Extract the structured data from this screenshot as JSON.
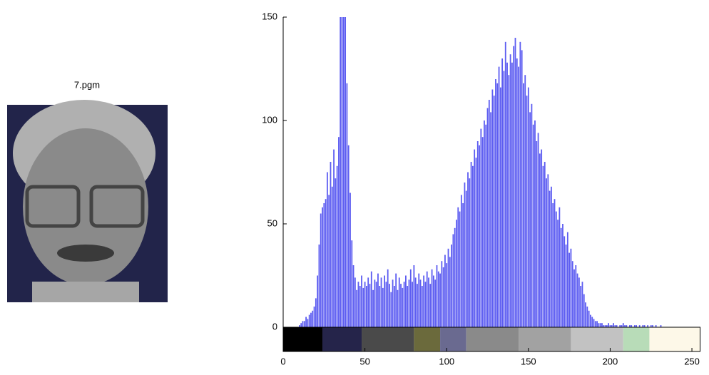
{
  "chart_data": {
    "type": "histogram",
    "image_title": "7.pgm",
    "color": "#3333ee",
    "x": [
      0,
      1,
      2,
      3,
      4,
      5,
      6,
      7,
      8,
      9,
      10,
      11,
      12,
      13,
      14,
      15,
      16,
      17,
      18,
      19,
      20,
      21,
      22,
      23,
      24,
      25,
      26,
      27,
      28,
      29,
      30,
      31,
      32,
      33,
      34,
      35,
      36,
      37,
      38,
      39,
      40,
      41,
      42,
      43,
      44,
      45,
      46,
      47,
      48,
      49,
      50,
      51,
      52,
      53,
      54,
      55,
      56,
      57,
      58,
      59,
      60,
      61,
      62,
      63,
      64,
      65,
      66,
      67,
      68,
      69,
      70,
      71,
      72,
      73,
      74,
      75,
      76,
      77,
      78,
      79,
      80,
      81,
      82,
      83,
      84,
      85,
      86,
      87,
      88,
      89,
      90,
      91,
      92,
      93,
      94,
      95,
      96,
      97,
      98,
      99,
      100,
      101,
      102,
      103,
      104,
      105,
      106,
      107,
      108,
      109,
      110,
      111,
      112,
      113,
      114,
      115,
      116,
      117,
      118,
      119,
      120,
      121,
      122,
      123,
      124,
      125,
      126,
      127,
      128,
      129,
      130,
      131,
      132,
      133,
      134,
      135,
      136,
      137,
      138,
      139,
      140,
      141,
      142,
      143,
      144,
      145,
      146,
      147,
      148,
      149,
      150,
      151,
      152,
      153,
      154,
      155,
      156,
      157,
      158,
      159,
      160,
      161,
      162,
      163,
      164,
      165,
      166,
      167,
      168,
      169,
      170,
      171,
      172,
      173,
      174,
      175,
      176,
      177,
      178,
      179,
      180,
      181,
      182,
      183,
      184,
      185,
      186,
      187,
      188,
      189,
      190,
      191,
      192,
      193,
      194,
      195,
      196,
      197,
      198,
      199,
      200,
      201,
      202,
      203,
      204,
      205,
      206,
      207,
      208,
      209,
      210,
      211,
      212,
      213,
      214,
      215,
      216,
      217,
      218,
      219,
      220,
      221,
      222,
      223,
      224,
      225,
      226,
      227,
      228,
      229,
      230,
      231,
      232,
      233,
      234,
      235,
      236,
      237,
      238,
      239,
      240,
      241,
      242,
      243,
      244,
      245,
      246,
      247,
      248,
      249,
      250,
      251,
      252,
      253,
      254,
      255
    ],
    "values": [
      0,
      0,
      0,
      0,
      0,
      0,
      0,
      0,
      0,
      0,
      1,
      2,
      3,
      3,
      5,
      4,
      6,
      7,
      8,
      10,
      14,
      25,
      40,
      55,
      58,
      60,
      62,
      75,
      64,
      80,
      68,
      86,
      72,
      78,
      92,
      150,
      150,
      150,
      150,
      118,
      88,
      65,
      42,
      30,
      24,
      18,
      22,
      20,
      25,
      19,
      22,
      20,
      24,
      21,
      27,
      18,
      23,
      22,
      26,
      20,
      24,
      19,
      25,
      22,
      28,
      21,
      17,
      23,
      20,
      26,
      18,
      24,
      21,
      19,
      22,
      25,
      20,
      23,
      28,
      22,
      30,
      24,
      21,
      26,
      23,
      20,
      25,
      22,
      27,
      24,
      21,
      28,
      25,
      23,
      30,
      27,
      26,
      32,
      29,
      35,
      31,
      38,
      34,
      40,
      45,
      48,
      52,
      58,
      56,
      64,
      60,
      70,
      66,
      75,
      72,
      80,
      78,
      86,
      82,
      90,
      88,
      96,
      92,
      100,
      98,
      106,
      110,
      104,
      115,
      112,
      120,
      118,
      126,
      116,
      130,
      124,
      138,
      128,
      122,
      132,
      128,
      136,
      140,
      130,
      126,
      138,
      134,
      118,
      122,
      112,
      116,
      104,
      108,
      98,
      100,
      90,
      94,
      84,
      86,
      78,
      80,
      72,
      74,
      66,
      68,
      60,
      62,
      56,
      52,
      58,
      48,
      50,
      44,
      40,
      46,
      36,
      38,
      32,
      28,
      30,
      26,
      24,
      20,
      22,
      16,
      12,
      10,
      8,
      6,
      5,
      4,
      3,
      3,
      2,
      2,
      2,
      1,
      1,
      1,
      2,
      1,
      1,
      2,
      1,
      1,
      0,
      1,
      1,
      2,
      1,
      1,
      0,
      1,
      1,
      0,
      1,
      1,
      0,
      1,
      0,
      1,
      1,
      0,
      1,
      0,
      1,
      1,
      0,
      1,
      0,
      0,
      1,
      0,
      0,
      0,
      0,
      0,
      0,
      0,
      0,
      0,
      0,
      0,
      0,
      0,
      0,
      0,
      0,
      0,
      0,
      0,
      0,
      0,
      0,
      0,
      0
    ],
    "xlim": [
      0,
      255
    ],
    "xticks": [
      0,
      50,
      100,
      150,
      200,
      250
    ],
    "ylim": [
      0,
      150
    ],
    "yticks": [
      0,
      50,
      100,
      150
    ],
    "colorbar": {
      "edges": [
        0,
        24,
        48,
        80,
        96,
        112,
        144,
        176,
        208,
        224,
        255
      ],
      "colors": [
        "#000000",
        "#25244a",
        "#4a4a4a",
        "#6b6a3c",
        "#6a6a90",
        "#8a8a8a",
        "#a2a2a2",
        "#c2c2c2",
        "#b8dcb8",
        "#fdf8e8"
      ]
    }
  }
}
